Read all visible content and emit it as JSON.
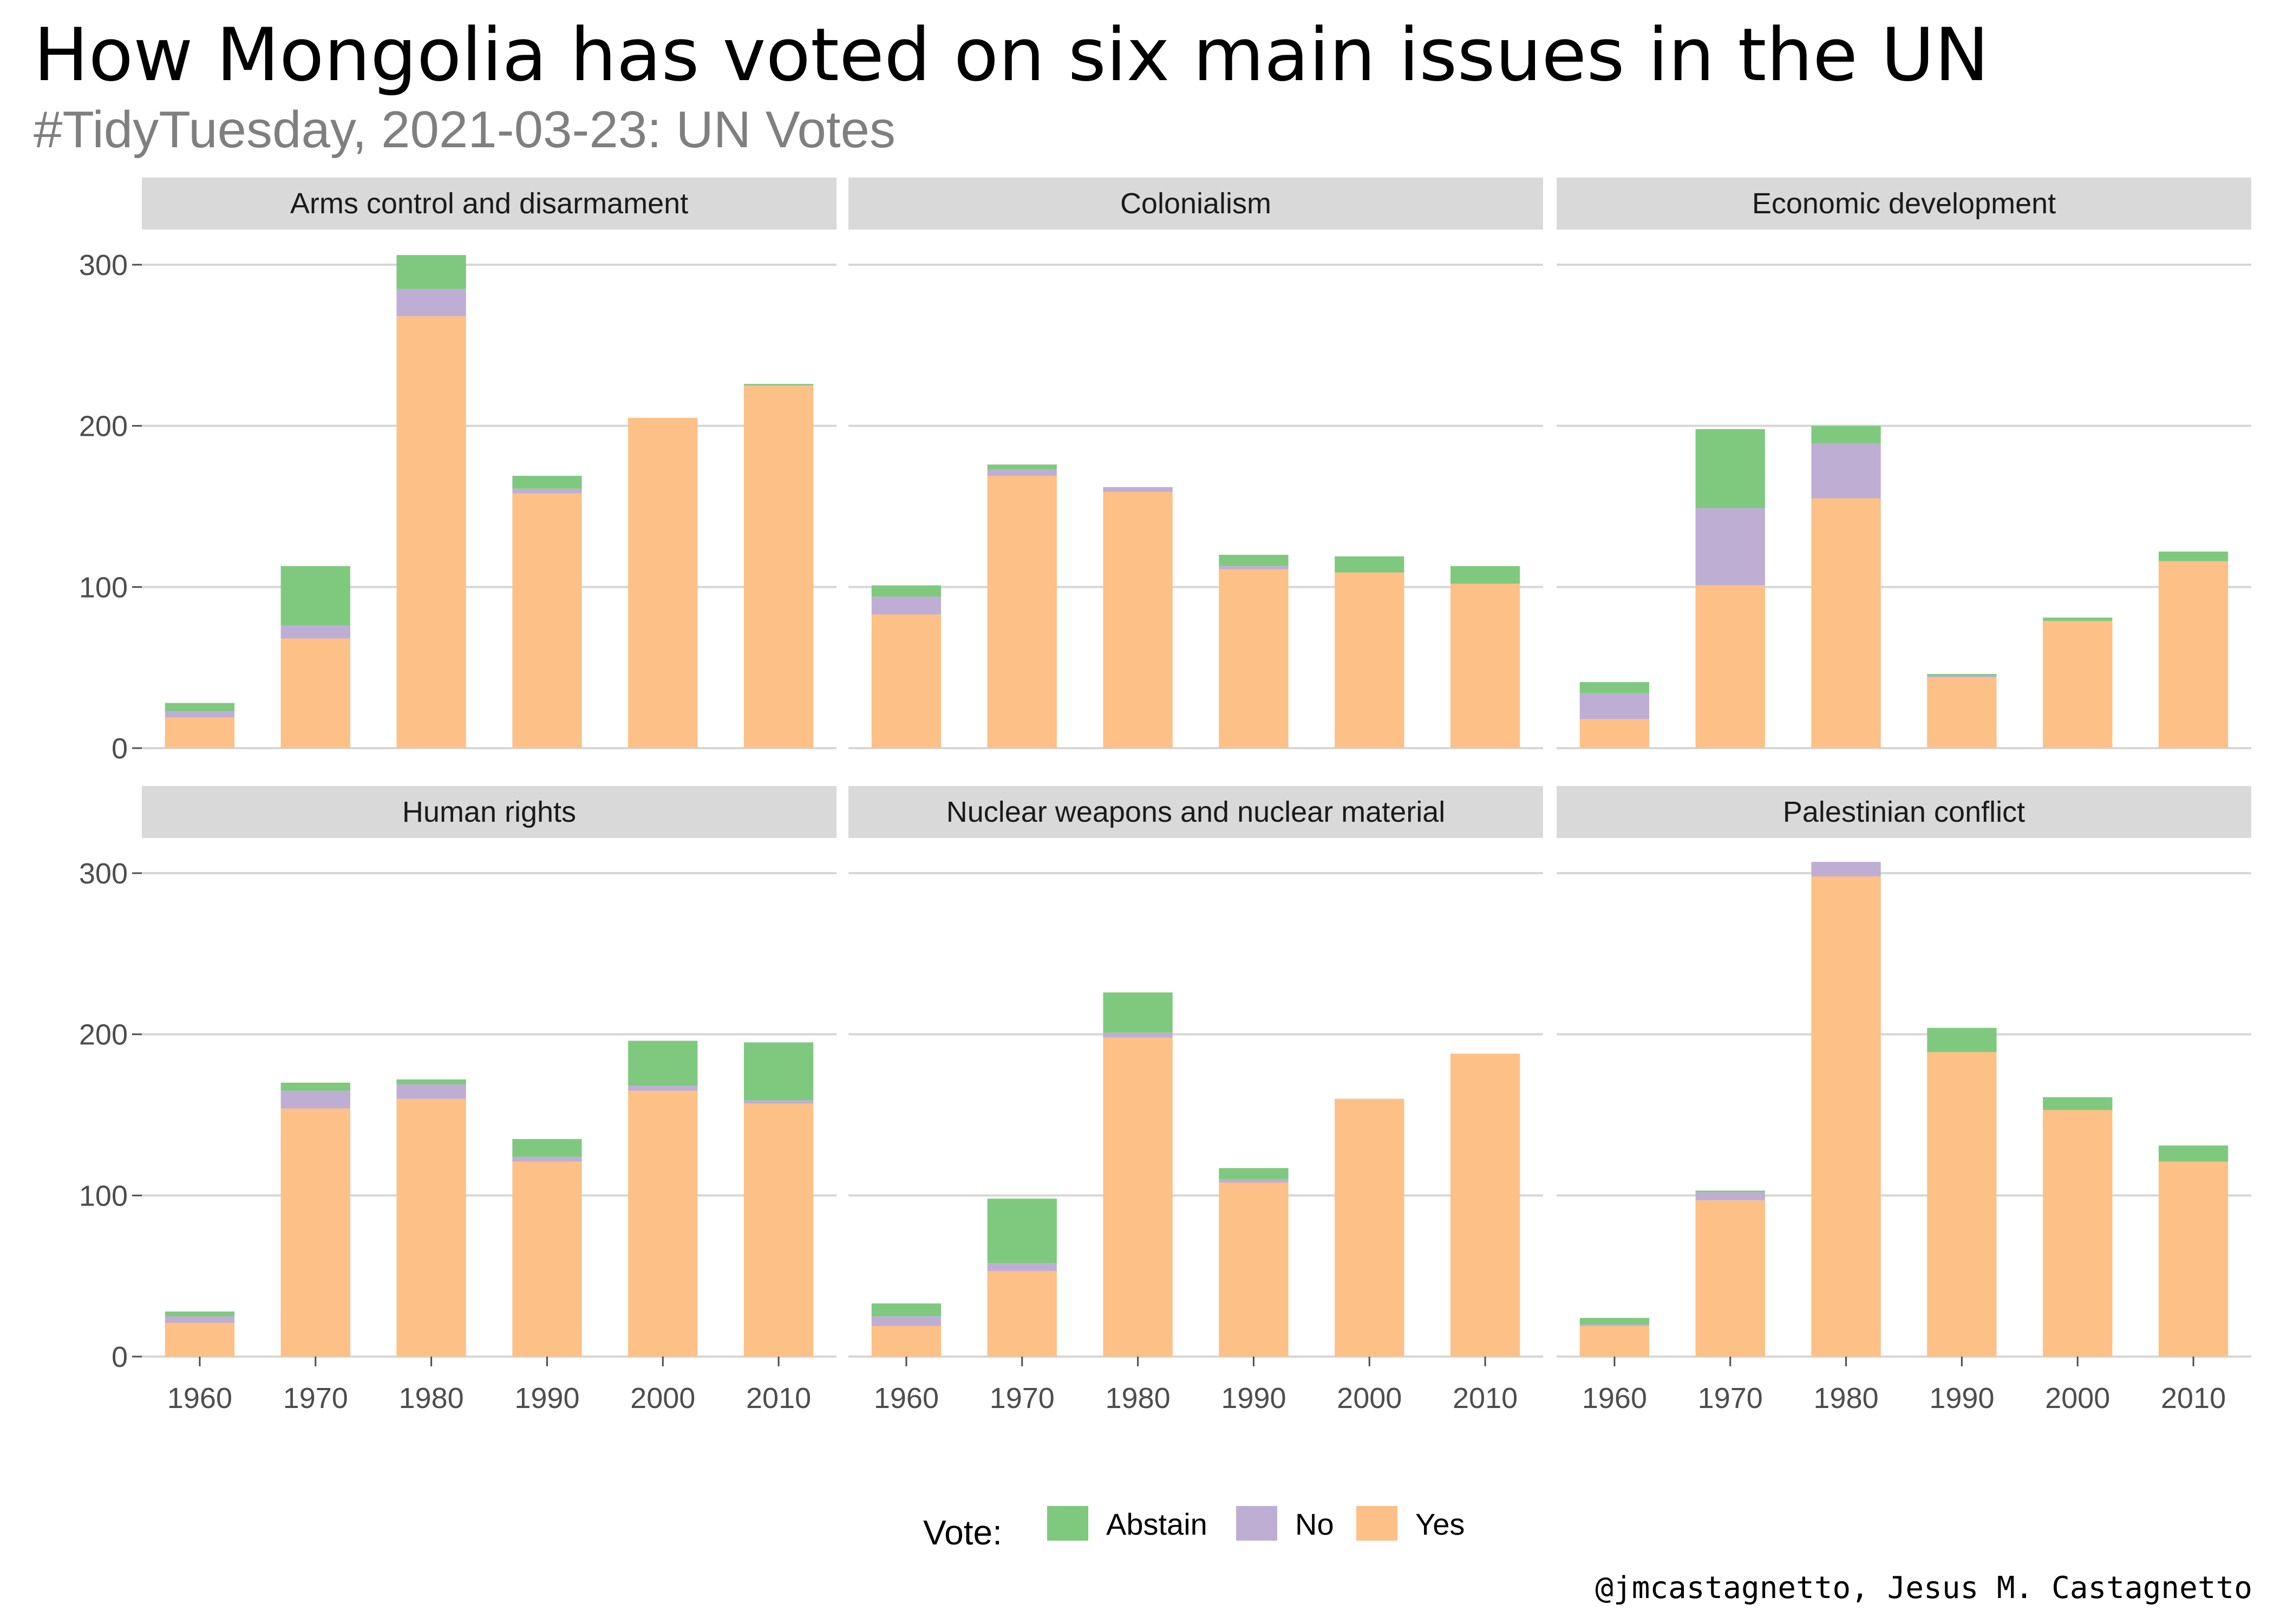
{
  "title": "How Mongolia has voted on six main issues in the UN",
  "subtitle": "#TidyTuesday, 2021-03-23: UN Votes",
  "caption": "@jmcastagnetto, Jesus M. Castagnetto",
  "colors": {
    "Abstain": "#7fc97f",
    "No": "#beaed4",
    "Yes": "#fdc086",
    "subtitle": "#7f7f7f",
    "strip_bg": "#d9d9d9",
    "grid": "#d6d6d6"
  },
  "legend": {
    "title": "Vote:",
    "position": "bottom",
    "items": [
      {
        "key": "Abstain",
        "label": "Abstain"
      },
      {
        "key": "No",
        "label": "No"
      },
      {
        "key": "Yes",
        "label": "Yes"
      }
    ]
  },
  "chart_data": {
    "type": "bar",
    "stacked": true,
    "facet_layout": "2 rows x 3 columns",
    "stack_order_bottom_to_top": [
      "Yes",
      "No",
      "Abstain"
    ],
    "categories": [
      "1960",
      "1970",
      "1980",
      "1990",
      "2000",
      "2010"
    ],
    "ylim": [
      0,
      300
    ],
    "yticks": [
      0,
      100,
      200,
      300
    ],
    "grid": true,
    "panels": [
      {
        "title": "Arms control and disarmament",
        "series": [
          {
            "name": "Yes",
            "values": [
              19,
              68,
              268,
              158,
              205,
              225
            ]
          },
          {
            "name": "No",
            "values": [
              4,
              8,
              17,
              3,
              0,
              0
            ]
          },
          {
            "name": "Abstain",
            "values": [
              5,
              37,
              21,
              8,
              0,
              1
            ]
          }
        ]
      },
      {
        "title": "Colonialism",
        "series": [
          {
            "name": "Yes",
            "values": [
              83,
              169,
              159,
              111,
              109,
              102
            ]
          },
          {
            "name": "No",
            "values": [
              11,
              4,
              3,
              2,
              0,
              0
            ]
          },
          {
            "name": "Abstain",
            "values": [
              7,
              3,
              0,
              7,
              10,
              11
            ]
          }
        ]
      },
      {
        "title": "Economic development",
        "series": [
          {
            "name": "Yes",
            "values": [
              18,
              101,
              155,
              44,
              79,
              116
            ]
          },
          {
            "name": "No",
            "values": [
              16,
              48,
              34,
              1,
              0,
              0
            ]
          },
          {
            "name": "Abstain",
            "values": [
              7,
              49,
              11,
              1,
              2,
              6
            ]
          }
        ]
      },
      {
        "title": "Human rights",
        "series": [
          {
            "name": "Yes",
            "values": [
              21,
              154,
              160,
              121,
              165,
              157
            ]
          },
          {
            "name": "No",
            "values": [
              4,
              11,
              9,
              3,
              3,
              2
            ]
          },
          {
            "name": "Abstain",
            "values": [
              3,
              5,
              3,
              11,
              28,
              36
            ]
          }
        ]
      },
      {
        "title": "Nuclear weapons and nuclear material",
        "series": [
          {
            "name": "Yes",
            "values": [
              19,
              53,
              198,
              108,
              160,
              188
            ]
          },
          {
            "name": "No",
            "values": [
              6,
              5,
              3,
              2,
              0,
              0
            ]
          },
          {
            "name": "Abstain",
            "values": [
              8,
              40,
              25,
              7,
              0,
              0
            ]
          }
        ]
      },
      {
        "title": "Palestinian conflict",
        "series": [
          {
            "name": "Yes",
            "values": [
              19,
              97,
              298,
              189,
              153,
              121
            ]
          },
          {
            "name": "No",
            "values": [
              1,
              5,
              9,
              0,
              0,
              0
            ]
          },
          {
            "name": "Abstain",
            "values": [
              4,
              1,
              0,
              15,
              8,
              10
            ]
          }
        ]
      }
    ]
  }
}
